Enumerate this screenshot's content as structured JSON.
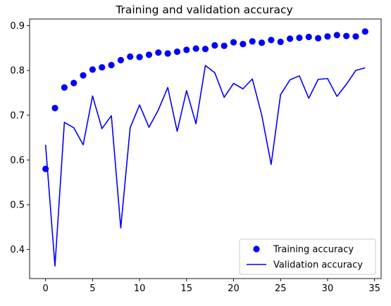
{
  "chart_data": {
    "type": "line",
    "title": "Training and validation accuracy",
    "xlabel": "",
    "ylabel": "",
    "xlim": [
      -1.7,
      35.7
    ],
    "ylim": [
      0.335,
      0.915
    ],
    "xticks": [
      0,
      5,
      10,
      15,
      20,
      25,
      30,
      35
    ],
    "yticks": [
      0.4,
      0.5,
      0.6,
      0.7,
      0.8,
      0.9
    ],
    "ytick_labels": [
      "0.4",
      "0.5",
      "0.6",
      "0.7",
      "0.8",
      "0.9"
    ],
    "grid": false,
    "legend_position": "lower-right",
    "series": [
      {
        "name": "Training accuracy",
        "style": "markers",
        "color": "#0000ff",
        "x": [
          0,
          1,
          2,
          3,
          4,
          5,
          6,
          7,
          8,
          9,
          10,
          11,
          12,
          13,
          14,
          15,
          16,
          17,
          18,
          19,
          20,
          21,
          22,
          23,
          24,
          25,
          26,
          27,
          28,
          29,
          30,
          31,
          32,
          33,
          34
        ],
        "values": [
          0.58,
          0.716,
          0.762,
          0.772,
          0.789,
          0.802,
          0.807,
          0.812,
          0.823,
          0.831,
          0.83,
          0.835,
          0.84,
          0.838,
          0.842,
          0.846,
          0.849,
          0.848,
          0.856,
          0.855,
          0.863,
          0.859,
          0.865,
          0.862,
          0.868,
          0.864,
          0.871,
          0.873,
          0.875,
          0.872,
          0.876,
          0.879,
          0.877,
          0.876,
          0.887
        ]
      },
      {
        "name": "Validation accuracy",
        "style": "line",
        "color": "#0000ff",
        "x": [
          0,
          1,
          2,
          3,
          4,
          5,
          6,
          7,
          8,
          9,
          10,
          11,
          12,
          13,
          14,
          15,
          16,
          17,
          18,
          19,
          20,
          21,
          22,
          23,
          24,
          25,
          26,
          27,
          28,
          29,
          30,
          31,
          32,
          33,
          34
        ],
        "values": [
          0.634,
          0.363,
          0.684,
          0.672,
          0.634,
          0.743,
          0.67,
          0.699,
          0.448,
          0.672,
          0.723,
          0.673,
          0.712,
          0.762,
          0.664,
          0.755,
          0.681,
          0.811,
          0.795,
          0.74,
          0.771,
          0.759,
          0.781,
          0.7,
          0.59,
          0.746,
          0.779,
          0.788,
          0.738,
          0.78,
          0.782,
          0.742,
          0.769,
          0.8,
          0.806
        ]
      }
    ]
  }
}
